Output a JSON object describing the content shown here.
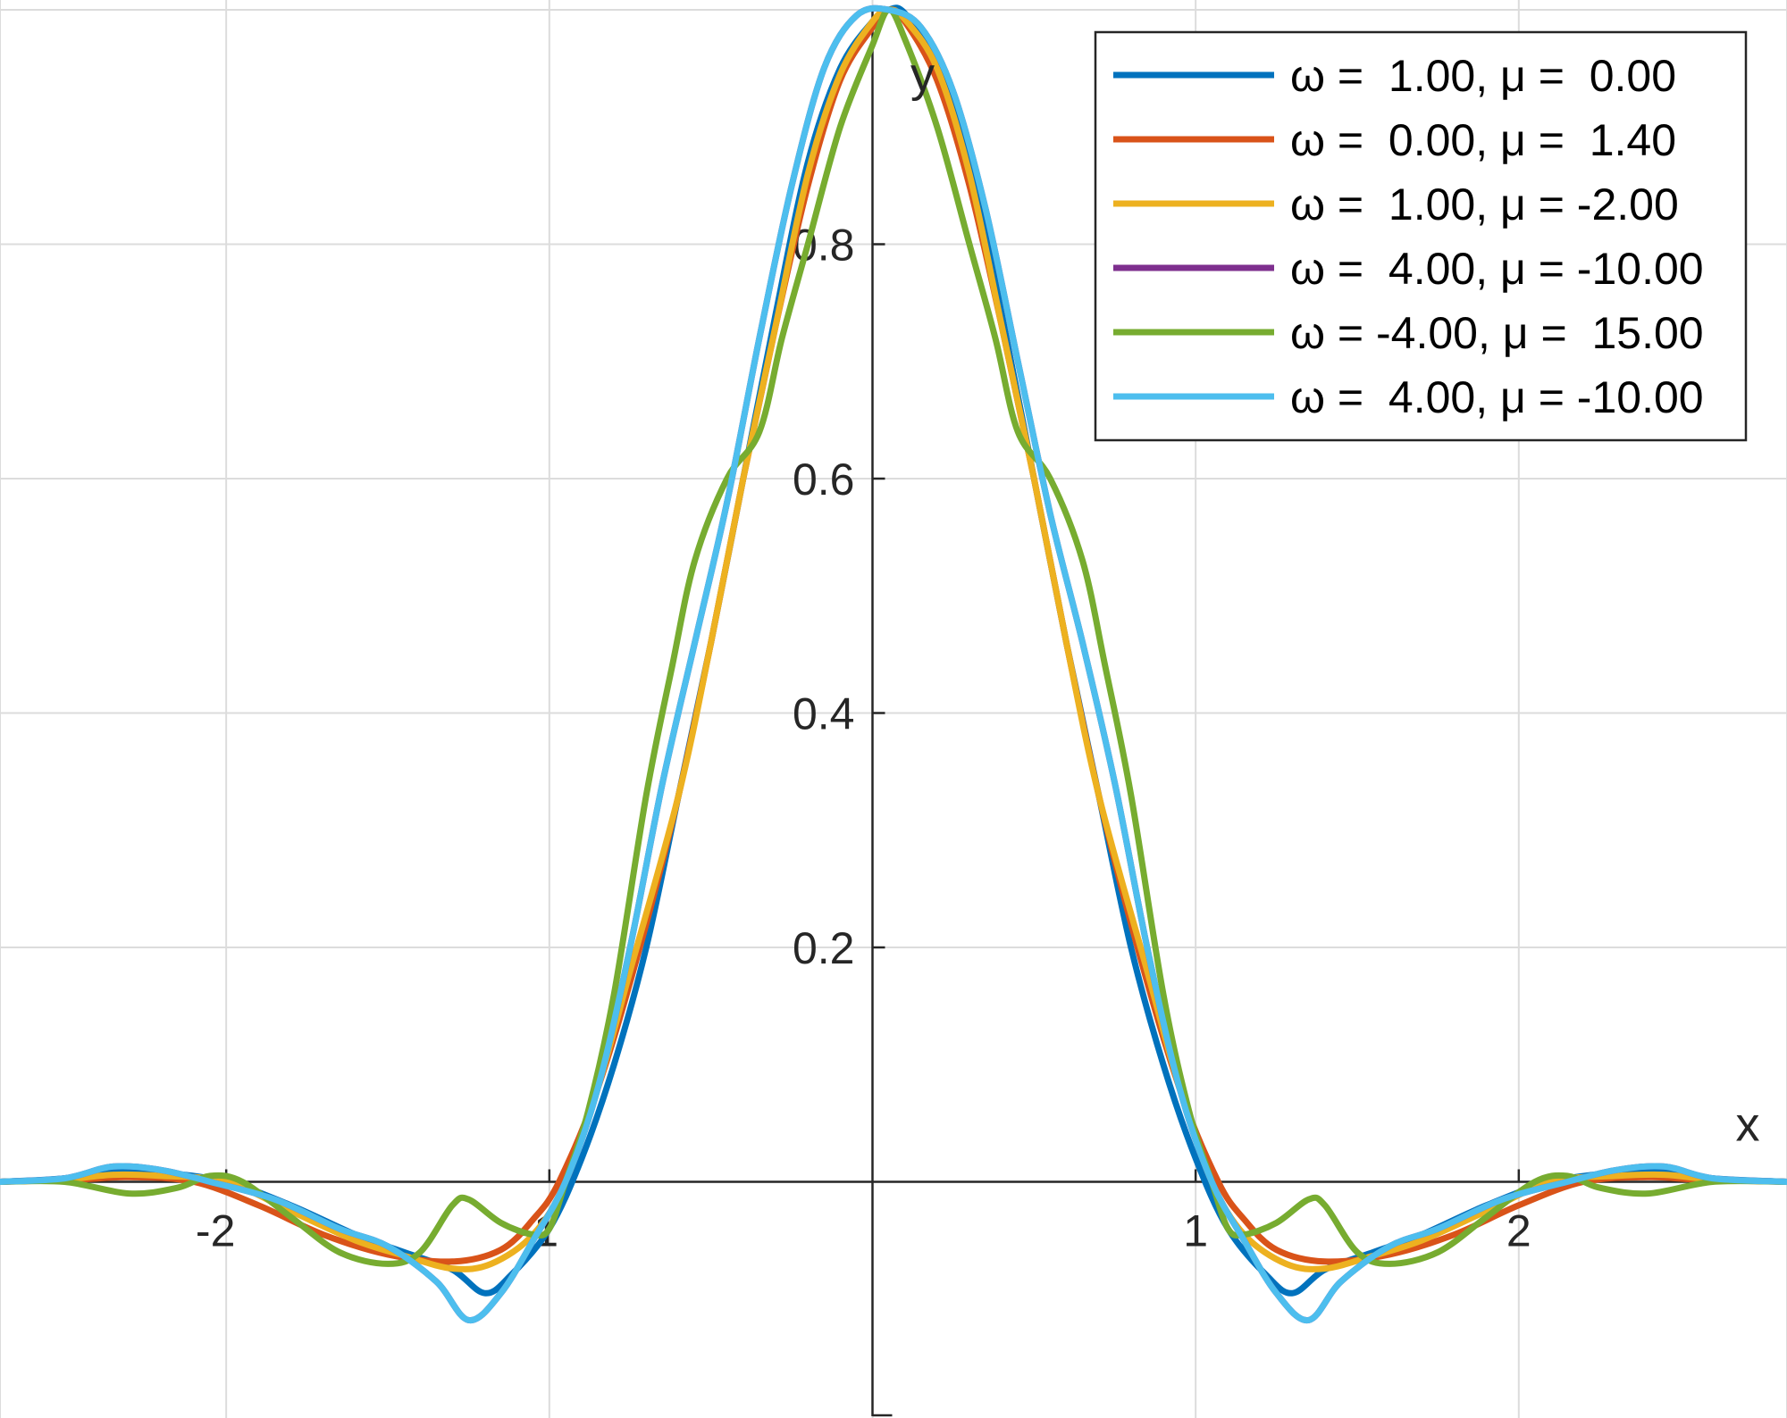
{
  "chart_data": {
    "type": "line",
    "title": "",
    "xlabel": "x",
    "ylabel": "y",
    "xlim": [
      -2.7,
      2.83
    ],
    "ylim": [
      -0.2,
      1.0
    ],
    "xticks": [
      -2,
      -1,
      1,
      2
    ],
    "xtick_labels": [
      "-2",
      "-1",
      "1",
      "2"
    ],
    "yticks": [
      0.2,
      0.4,
      0.6,
      0.8
    ],
    "ytick_labels": [
      "0.2",
      "0.4",
      "0.6",
      "0.8"
    ],
    "xgrid": [
      -2.7,
      -2,
      -1,
      0,
      1,
      2,
      2.83
    ],
    "ygrid": [
      0.2,
      0.4,
      0.6,
      0.8
    ],
    "grid": true,
    "legend_placement": "top-right",
    "series": [
      {
        "name": "ω =  1.00, μ =  0.00",
        "color": "#0072BD",
        "points": [
          [
            -2.7,
            0
          ],
          [
            -2.5,
            0.003
          ],
          [
            -2.35,
            0.01
          ],
          [
            -2.2,
            0.008
          ],
          [
            -2.0,
            0.0
          ],
          [
            -1.8,
            -0.02
          ],
          [
            -1.6,
            -0.045
          ],
          [
            -1.45,
            -0.06
          ],
          [
            -1.3,
            -0.075
          ],
          [
            -1.2,
            -0.095
          ],
          [
            -1.12,
            -0.08
          ],
          [
            -1.0,
            -0.04
          ],
          [
            -0.9,
            0.02
          ],
          [
            -0.8,
            0.1
          ],
          [
            -0.7,
            0.2
          ],
          [
            -0.6,
            0.33
          ],
          [
            -0.5,
            0.46
          ],
          [
            -0.4,
            0.6
          ],
          [
            -0.3,
            0.74
          ],
          [
            -0.2,
            0.87
          ],
          [
            -0.1,
            0.95
          ],
          [
            0.0,
            0.99
          ],
          [
            0.05,
            1.0
          ],
          [
            0.1,
            0.997
          ],
          [
            0.2,
            0.955
          ],
          [
            0.3,
            0.87
          ],
          [
            0.4,
            0.74
          ],
          [
            0.5,
            0.6
          ],
          [
            0.6,
            0.46
          ],
          [
            0.7,
            0.33
          ],
          [
            0.8,
            0.2
          ],
          [
            0.9,
            0.1
          ],
          [
            1.0,
            0.02
          ],
          [
            1.1,
            -0.04
          ],
          [
            1.22,
            -0.08
          ],
          [
            1.3,
            -0.095
          ],
          [
            1.4,
            -0.075
          ],
          [
            1.55,
            -0.06
          ],
          [
            1.7,
            -0.045
          ],
          [
            1.9,
            -0.02
          ],
          [
            2.1,
            0.0
          ],
          [
            2.3,
            0.008
          ],
          [
            2.45,
            0.01
          ],
          [
            2.6,
            0.003
          ],
          [
            2.83,
            0
          ]
        ]
      },
      {
        "name": "ω =  0.00, μ =  1.40",
        "color": "#D95319",
        "points": [
          [
            -2.7,
            0
          ],
          [
            -2.45,
            0.002
          ],
          [
            -2.3,
            0.004
          ],
          [
            -2.1,
            0.0
          ],
          [
            -1.9,
            -0.02
          ],
          [
            -1.7,
            -0.045
          ],
          [
            -1.5,
            -0.062
          ],
          [
            -1.3,
            -0.068
          ],
          [
            -1.15,
            -0.058
          ],
          [
            -1.05,
            -0.032
          ],
          [
            -0.97,
            0.0
          ],
          [
            -0.85,
            0.08
          ],
          [
            -0.72,
            0.2
          ],
          [
            -0.6,
            0.33
          ],
          [
            -0.5,
            0.46
          ],
          [
            -0.4,
            0.6
          ],
          [
            -0.3,
            0.73
          ],
          [
            -0.2,
            0.85
          ],
          [
            -0.1,
            0.94
          ],
          [
            0.0,
            0.985
          ],
          [
            0.05,
            1.0
          ],
          [
            0.1,
            0.99
          ],
          [
            0.2,
            0.94
          ],
          [
            0.3,
            0.85
          ],
          [
            0.4,
            0.73
          ],
          [
            0.5,
            0.6
          ],
          [
            0.6,
            0.46
          ],
          [
            0.7,
            0.33
          ],
          [
            0.82,
            0.2
          ],
          [
            0.95,
            0.08
          ],
          [
            1.07,
            0.0
          ],
          [
            1.15,
            -0.032
          ],
          [
            1.25,
            -0.058
          ],
          [
            1.4,
            -0.068
          ],
          [
            1.6,
            -0.062
          ],
          [
            1.8,
            -0.045
          ],
          [
            2.0,
            -0.02
          ],
          [
            2.2,
            0.0
          ],
          [
            2.4,
            0.004
          ],
          [
            2.55,
            0.002
          ],
          [
            2.83,
            0
          ]
        ]
      },
      {
        "name": "ω =  1.00, μ = -2.00",
        "color": "#EDB120",
        "points": [
          [
            -2.7,
            0
          ],
          [
            -2.5,
            0.002
          ],
          [
            -2.35,
            0.006
          ],
          [
            -2.2,
            0.005
          ],
          [
            -2.0,
            0.0
          ],
          [
            -1.8,
            -0.025
          ],
          [
            -1.6,
            -0.05
          ],
          [
            -1.45,
            -0.063
          ],
          [
            -1.3,
            -0.074
          ],
          [
            -1.18,
            -0.07
          ],
          [
            -1.05,
            -0.045
          ],
          [
            -0.95,
            0.0
          ],
          [
            -0.85,
            0.08
          ],
          [
            -0.75,
            0.18
          ],
          [
            -0.6,
            0.33
          ],
          [
            -0.5,
            0.46
          ],
          [
            -0.4,
            0.6
          ],
          [
            -0.3,
            0.73
          ],
          [
            -0.2,
            0.86
          ],
          [
            -0.1,
            0.945
          ],
          [
            0.0,
            0.99
          ],
          [
            0.05,
            1.0
          ],
          [
            0.1,
            0.992
          ],
          [
            0.2,
            0.95
          ],
          [
            0.3,
            0.86
          ],
          [
            0.4,
            0.73
          ],
          [
            0.5,
            0.6
          ],
          [
            0.6,
            0.46
          ],
          [
            0.7,
            0.33
          ],
          [
            0.85,
            0.18
          ],
          [
            0.95,
            0.08
          ],
          [
            1.05,
            0.0
          ],
          [
            1.15,
            -0.045
          ],
          [
            1.28,
            -0.07
          ],
          [
            1.4,
            -0.074
          ],
          [
            1.55,
            -0.063
          ],
          [
            1.7,
            -0.05
          ],
          [
            1.9,
            -0.025
          ],
          [
            2.1,
            0.0
          ],
          [
            2.3,
            0.005
          ],
          [
            2.45,
            0.006
          ],
          [
            2.6,
            0.002
          ],
          [
            2.83,
            0
          ]
        ]
      },
      {
        "name": "ω =  4.00, μ = -10.00",
        "color": "#7E2F8E",
        "points": [
          [
            -2.7,
            0
          ],
          [
            -2.5,
            0.003
          ],
          [
            -2.35,
            0.013
          ],
          [
            -2.2,
            0.01
          ],
          [
            -2.05,
            0.0
          ],
          [
            -1.85,
            -0.015
          ],
          [
            -1.65,
            -0.04
          ],
          [
            -1.5,
            -0.055
          ],
          [
            -1.35,
            -0.085
          ],
          [
            -1.25,
            -0.118
          ],
          [
            -1.15,
            -0.095
          ],
          [
            -1.05,
            -0.05
          ],
          [
            -0.95,
            0.0
          ],
          [
            -0.85,
            0.08
          ],
          [
            -0.75,
            0.2
          ],
          [
            -0.65,
            0.34
          ],
          [
            -0.55,
            0.46
          ],
          [
            -0.45,
            0.58
          ],
          [
            -0.35,
            0.72
          ],
          [
            -0.25,
            0.85
          ],
          [
            -0.15,
            0.95
          ],
          [
            -0.05,
            0.995
          ],
          [
            0.05,
            1.0
          ],
          [
            0.15,
            0.985
          ],
          [
            0.25,
            0.93
          ],
          [
            0.35,
            0.83
          ],
          [
            0.45,
            0.7
          ],
          [
            0.55,
            0.57
          ],
          [
            0.65,
            0.46
          ],
          [
            0.75,
            0.34
          ],
          [
            0.85,
            0.2
          ],
          [
            0.95,
            0.08
          ],
          [
            1.05,
            0.0
          ],
          [
            1.15,
            -0.05
          ],
          [
            1.25,
            -0.095
          ],
          [
            1.35,
            -0.118
          ],
          [
            1.45,
            -0.085
          ],
          [
            1.6,
            -0.055
          ],
          [
            1.75,
            -0.04
          ],
          [
            1.95,
            -0.015
          ],
          [
            2.15,
            0.0
          ],
          [
            2.3,
            0.01
          ],
          [
            2.45,
            0.013
          ],
          [
            2.6,
            0.003
          ],
          [
            2.83,
            0
          ]
        ]
      },
      {
        "name": "ω = -4.00, μ =  15.00",
        "color": "#77AC30",
        "points": [
          [
            -2.7,
            0
          ],
          [
            -2.5,
            0.0
          ],
          [
            -2.3,
            -0.01
          ],
          [
            -2.15,
            -0.005
          ],
          [
            -2.05,
            0.005
          ],
          [
            -1.95,
            0.0
          ],
          [
            -1.8,
            -0.03
          ],
          [
            -1.65,
            -0.06
          ],
          [
            -1.5,
            -0.07
          ],
          [
            -1.4,
            -0.06
          ],
          [
            -1.3,
            -0.02
          ],
          [
            -1.25,
            -0.015
          ],
          [
            -1.15,
            -0.035
          ],
          [
            -1.05,
            -0.045
          ],
          [
            -1.0,
            -0.04
          ],
          [
            -0.95,
            0.0
          ],
          [
            -0.88,
            0.06
          ],
          [
            -0.8,
            0.16
          ],
          [
            -0.7,
            0.33
          ],
          [
            -0.62,
            0.44
          ],
          [
            -0.55,
            0.53
          ],
          [
            -0.45,
            0.6
          ],
          [
            -0.35,
            0.64
          ],
          [
            -0.28,
            0.72
          ],
          [
            -0.2,
            0.8
          ],
          [
            -0.1,
            0.9
          ],
          [
            0.0,
            0.97
          ],
          [
            0.05,
            1.0
          ],
          [
            0.1,
            0.975
          ],
          [
            0.2,
            0.9
          ],
          [
            0.3,
            0.8
          ],
          [
            0.38,
            0.72
          ],
          [
            0.45,
            0.64
          ],
          [
            0.55,
            0.6
          ],
          [
            0.65,
            0.53
          ],
          [
            0.72,
            0.44
          ],
          [
            0.8,
            0.33
          ],
          [
            0.9,
            0.16
          ],
          [
            0.98,
            0.06
          ],
          [
            1.05,
            0.0
          ],
          [
            1.1,
            -0.04
          ],
          [
            1.15,
            -0.045
          ],
          [
            1.25,
            -0.035
          ],
          [
            1.35,
            -0.015
          ],
          [
            1.4,
            -0.02
          ],
          [
            1.5,
            -0.06
          ],
          [
            1.6,
            -0.07
          ],
          [
            1.75,
            -0.06
          ],
          [
            1.9,
            -0.03
          ],
          [
            2.05,
            0.0
          ],
          [
            2.15,
            0.005
          ],
          [
            2.25,
            -0.005
          ],
          [
            2.4,
            -0.01
          ],
          [
            2.6,
            0.0
          ],
          [
            2.83,
            0
          ]
        ]
      },
      {
        "name": "ω =  4.00, μ = -10.00",
        "color": "#4DBEEE",
        "points": [
          [
            -2.7,
            0
          ],
          [
            -2.5,
            0.003
          ],
          [
            -2.35,
            0.013
          ],
          [
            -2.2,
            0.01
          ],
          [
            -2.05,
            0.0
          ],
          [
            -1.85,
            -0.015
          ],
          [
            -1.65,
            -0.04
          ],
          [
            -1.5,
            -0.055
          ],
          [
            -1.35,
            -0.085
          ],
          [
            -1.25,
            -0.118
          ],
          [
            -1.15,
            -0.095
          ],
          [
            -1.05,
            -0.05
          ],
          [
            -0.95,
            0.0
          ],
          [
            -0.85,
            0.08
          ],
          [
            -0.75,
            0.2
          ],
          [
            -0.65,
            0.34
          ],
          [
            -0.55,
            0.46
          ],
          [
            -0.45,
            0.58
          ],
          [
            -0.35,
            0.72
          ],
          [
            -0.25,
            0.85
          ],
          [
            -0.15,
            0.95
          ],
          [
            -0.05,
            0.995
          ],
          [
            0.05,
            1.0
          ],
          [
            0.15,
            0.985
          ],
          [
            0.25,
            0.93
          ],
          [
            0.35,
            0.83
          ],
          [
            0.45,
            0.7
          ],
          [
            0.55,
            0.57
          ],
          [
            0.65,
            0.46
          ],
          [
            0.75,
            0.34
          ],
          [
            0.85,
            0.2
          ],
          [
            0.95,
            0.08
          ],
          [
            1.05,
            0.0
          ],
          [
            1.15,
            -0.05
          ],
          [
            1.25,
            -0.095
          ],
          [
            1.35,
            -0.118
          ],
          [
            1.45,
            -0.085
          ],
          [
            1.6,
            -0.055
          ],
          [
            1.75,
            -0.04
          ],
          [
            1.95,
            -0.015
          ],
          [
            2.15,
            0.0
          ],
          [
            2.3,
            0.01
          ],
          [
            2.45,
            0.013
          ],
          [
            2.6,
            0.003
          ],
          [
            2.83,
            0
          ]
        ]
      }
    ]
  }
}
